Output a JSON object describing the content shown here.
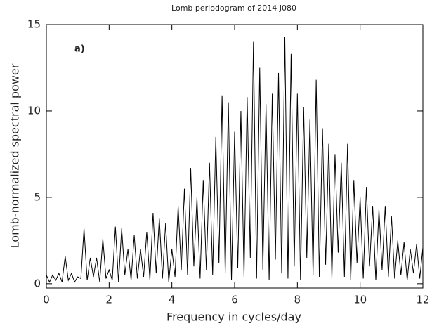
{
  "chart_data": {
    "type": "line",
    "title": "Lomb periodogram of 2014 J080",
    "xlabel": "Frequency in cycles/day",
    "ylabel": "Lomb-normalized spectral power",
    "annotation": "a)",
    "color": "#000000",
    "xlim": [
      0,
      12
    ],
    "xticks": [
      0,
      2,
      4,
      6,
      8,
      10,
      12
    ],
    "ylim": [
      -0.25,
      15
    ],
    "yticks": [
      0,
      5,
      10,
      15
    ],
    "x": [
      0,
      0.1,
      0.2,
      0.3,
      0.4,
      0.5,
      0.6,
      0.7,
      0.8,
      0.9,
      1,
      1.1,
      1.2,
      1.3,
      1.4,
      1.5,
      1.6,
      1.7,
      1.8,
      1.9,
      2,
      2.1,
      2.2,
      2.3,
      2.4,
      2.5,
      2.6,
      2.7,
      2.8,
      2.9,
      3,
      3.1,
      3.2,
      3.3,
      3.4,
      3.5,
      3.6,
      3.7,
      3.8,
      3.9,
      4,
      4.1,
      4.2,
      4.3,
      4.4,
      4.5,
      4.6,
      4.7,
      4.8,
      4.9,
      5,
      5.1,
      5.2,
      5.3,
      5.4,
      5.5,
      5.6,
      5.7,
      5.8,
      5.9,
      6,
      6.1,
      6.2,
      6.3,
      6.4,
      6.5,
      6.6,
      6.7,
      6.8,
      6.9,
      7,
      7.1,
      7.2,
      7.3,
      7.4,
      7.5,
      7.6,
      7.7,
      7.8,
      7.9,
      8,
      8.1,
      8.2,
      8.3,
      8.4,
      8.5,
      8.6,
      8.7,
      8.8,
      8.9,
      9,
      9.1,
      9.2,
      9.3,
      9.4,
      9.5,
      9.6,
      9.7,
      9.8,
      9.9,
      10,
      10.1,
      10.2,
      10.3,
      10.4,
      10.5,
      10.6,
      10.7,
      10.8,
      10.9,
      11,
      11.1,
      11.2,
      11.3,
      11.4,
      11.5,
      11.6,
      11.7,
      11.8,
      11.9,
      12
    ],
    "values": [
      0.5,
      0.1,
      0.5,
      0.2,
      0.6,
      0.1,
      1.6,
      0.2,
      0.6,
      0.1,
      0.4,
      0.3,
      3.2,
      0.2,
      1.5,
      0.4,
      1.5,
      0.1,
      2.6,
      0.3,
      0.8,
      0.2,
      3.3,
      0.1,
      3.2,
      0.5,
      2.0,
      0.2,
      2.8,
      0.3,
      2.0,
      0.4,
      3.0,
      0.2,
      4.1,
      0.6,
      3.8,
      0.3,
      3.5,
      0.1,
      2.0,
      0.4,
      4.5,
      0.8,
      5.5,
      0.5,
      6.7,
      1.0,
      5.0,
      0.3,
      6.0,
      0.8,
      7.0,
      0.5,
      8.5,
      1.2,
      10.9,
      0.6,
      10.5,
      0.2,
      8.8,
      0.9,
      10.0,
      0.4,
      10.8,
      1.5,
      14.0,
      0.3,
      12.5,
      0.8,
      10.4,
      0.2,
      11.0,
      1.4,
      12.2,
      0.6,
      14.3,
      0.3,
      13.3,
      1.0,
      11.0,
      0.2,
      10.2,
      1.5,
      9.5,
      0.5,
      11.8,
      0.4,
      9.0,
      1.1,
      8.1,
      0.3,
      7.5,
      1.8,
      7.0,
      0.4,
      8.1,
      0.2,
      6.0,
      1.2,
      5.0,
      0.3,
      5.6,
      1.0,
      4.5,
      0.2,
      4.3,
      0.8,
      4.5,
      0.4,
      3.9,
      0.3,
      2.5,
      0.5,
      2.4,
      0.2,
      2.0,
      0.6,
      2.3,
      0.3,
      2.1
    ]
  }
}
